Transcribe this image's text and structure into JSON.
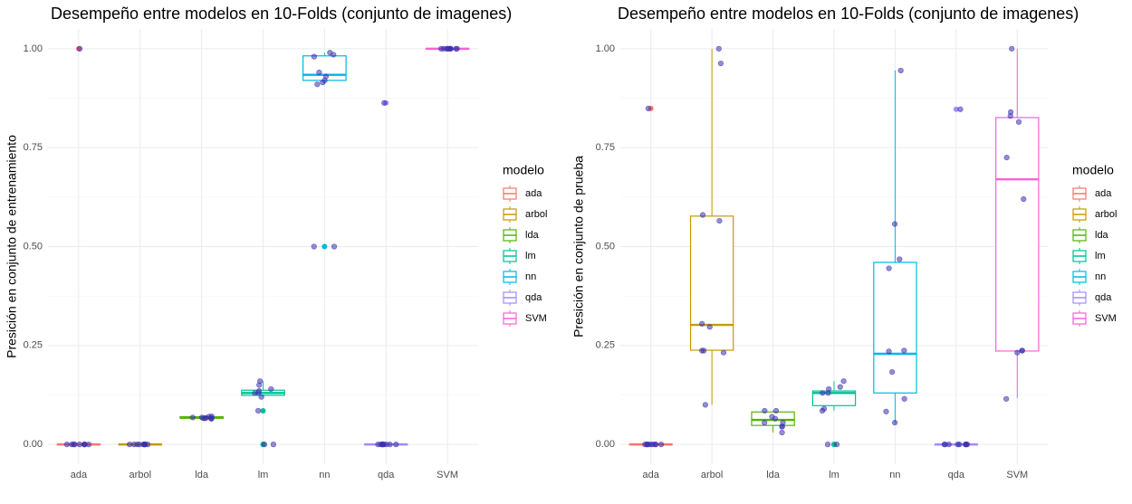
{
  "chart_data": [
    {
      "type": "box",
      "title": "Desempeño entre modelos en 10-Folds (conjunto de imagenes)",
      "y_label": "Presición en conjunto de entrenamiento",
      "legend_title": "modelo",
      "categories": [
        "ada",
        "arbol",
        "lda",
        "lm",
        "nn",
        "qda",
        "SVM"
      ],
      "ylim": [
        -0.05,
        1.05
      ],
      "yticks": [
        {
          "value": 0,
          "label": "0.00"
        },
        {
          "value": 0.25,
          "label": "0.25"
        },
        {
          "value": 0.5,
          "label": "0.50"
        },
        {
          "value": 0.75,
          "label": "0.75"
        },
        {
          "value": 1,
          "label": "1.00"
        }
      ],
      "grid": true,
      "point_color": "#3b2fb0",
      "boxes": [
        {
          "color": "#F8766D",
          "whisker_low": 0,
          "q1": 0,
          "median": 0,
          "q3": 0,
          "whisker_high": 0,
          "outliers": [
            1
          ],
          "points": [
            0,
            0,
            0,
            0,
            0,
            0,
            0,
            0,
            0,
            1
          ]
        },
        {
          "color": "#C49A00",
          "whisker_low": 0,
          "q1": 0,
          "median": 0,
          "q3": 0,
          "whisker_high": 0,
          "outliers": [],
          "points": [
            0,
            0,
            0,
            0,
            0,
            0,
            0,
            0,
            0,
            0
          ]
        },
        {
          "color": "#53B400",
          "whisker_low": 0.065,
          "q1": 0.066,
          "median": 0.068,
          "q3": 0.07,
          "whisker_high": 0.071,
          "outliers": [],
          "points": [
            0.071,
            0.07,
            0.068,
            0.068,
            0.067,
            0.067,
            0.066,
            0.066,
            0.065,
            0.065
          ]
        },
        {
          "color": "#00C094",
          "whisker_low": 0.12,
          "q1": 0.124,
          "median": 0.13,
          "q3": 0.137,
          "whisker_high": 0.16,
          "outliers": [
            0.085,
            0,
            0
          ],
          "points": [
            0.16,
            0.15,
            0.14,
            0.135,
            0.13,
            0.13,
            0.12,
            0.085,
            0,
            0
          ]
        },
        {
          "color": "#00B6EB",
          "whisker_low": 0.91,
          "q1": 0.92,
          "median": 0.934,
          "q3": 0.982,
          "whisker_high": 0.99,
          "outliers": [
            0.5
          ],
          "points": [
            0.99,
            0.985,
            0.98,
            0.94,
            0.93,
            0.92,
            0.915,
            0.91,
            0.5,
            0.5
          ]
        },
        {
          "color": "#A58AFF",
          "whisker_low": 0,
          "q1": 0,
          "median": 0,
          "q3": 0,
          "whisker_high": 0,
          "outliers": [
            0.863
          ],
          "points": [
            0,
            0,
            0,
            0,
            0,
            0,
            0,
            0,
            0,
            0.863
          ]
        },
        {
          "color": "#FB61D7",
          "whisker_low": 1,
          "q1": 1,
          "median": 1,
          "q3": 1,
          "whisker_high": 1,
          "outliers": [],
          "points": [
            1,
            1,
            1,
            1,
            1,
            1,
            1,
            1,
            1,
            1
          ]
        }
      ]
    },
    {
      "type": "box",
      "title": "Desempeño entre modelos en 10-Folds (conjunto de imagenes)",
      "y_label": "Presición en conjunto de prueba",
      "legend_title": "modelo",
      "categories": [
        "ada",
        "arbol",
        "lda",
        "lm",
        "nn",
        "qda",
        "SVM"
      ],
      "ylim": [
        -0.05,
        1.05
      ],
      "yticks": [
        {
          "value": 0,
          "label": "0.00"
        },
        {
          "value": 0.25,
          "label": "0.25"
        },
        {
          "value": 0.5,
          "label": "0.50"
        },
        {
          "value": 0.75,
          "label": "0.75"
        },
        {
          "value": 1,
          "label": "1.00"
        }
      ],
      "grid": true,
      "point_color": "#3b2fb0",
      "boxes": [
        {
          "color": "#F8766D",
          "whisker_low": 0,
          "q1": 0,
          "median": 0,
          "q3": 0,
          "whisker_high": 0,
          "outliers": [
            0.849
          ],
          "points": [
            0,
            0,
            0,
            0,
            0,
            0,
            0,
            0,
            0,
            0.849
          ]
        },
        {
          "color": "#C49A00",
          "whisker_low": 0.1,
          "q1": 0.238,
          "median": 0.302,
          "q3": 0.577,
          "whisker_high": 1,
          "outliers": [],
          "points": [
            1,
            0.963,
            0.58,
            0.565,
            0.305,
            0.297,
            0.237,
            0.237,
            0.232,
            0.1
          ]
        },
        {
          "color": "#53B400",
          "whisker_low": 0.03,
          "q1": 0.048,
          "median": 0.062,
          "q3": 0.082,
          "whisker_high": 0.085,
          "outliers": [],
          "points": [
            0.085,
            0.085,
            0.07,
            0.065,
            0.055,
            0.055,
            0.045,
            0.045,
            0.03
          ]
        },
        {
          "color": "#00C094",
          "whisker_low": 0.085,
          "q1": 0.098,
          "median": 0.13,
          "q3": 0.135,
          "whisker_high": 0.16,
          "outliers": [
            0,
            0
          ],
          "points": [
            0.16,
            0.145,
            0.14,
            0.13,
            0.13,
            0.09,
            0.085,
            0,
            0
          ]
        },
        {
          "color": "#00B6EB",
          "whisker_low": 0.053,
          "q1": 0.13,
          "median": 0.229,
          "q3": 0.46,
          "whisker_high": 0.945,
          "outliers": [],
          "points": [
            0.945,
            0.557,
            0.468,
            0.445,
            0.237,
            0.235,
            0.183,
            0.115,
            0.083,
            0.055
          ]
        },
        {
          "color": "#A58AFF",
          "whisker_low": 0,
          "q1": 0,
          "median": 0,
          "q3": 0,
          "whisker_high": 0,
          "outliers": [
            0.847
          ],
          "points": [
            0,
            0,
            0,
            0,
            0,
            0,
            0,
            0,
            0,
            0.847
          ]
        },
        {
          "color": "#FB61D7",
          "whisker_low": 0.117,
          "q1": 0.236,
          "median": 0.67,
          "q3": 0.826,
          "whisker_high": 1,
          "outliers": [],
          "points": [
            1,
            0.84,
            0.83,
            0.815,
            0.725,
            0.62,
            0.237,
            0.237,
            0.232,
            0.115
          ]
        }
      ]
    }
  ]
}
